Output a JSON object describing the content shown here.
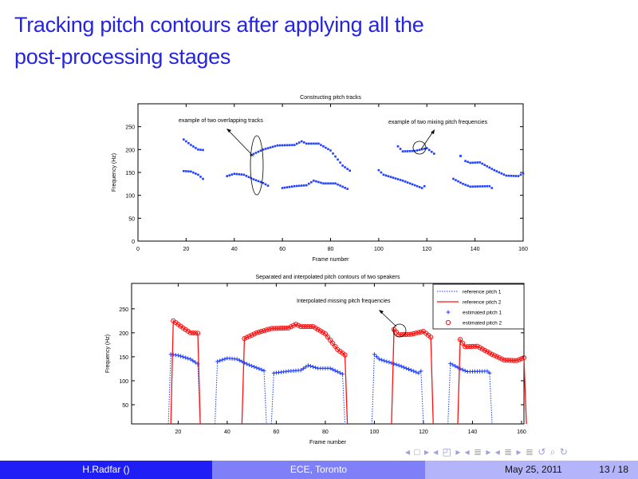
{
  "slide": {
    "title_line1": "Tracking pitch contours after applying all the",
    "title_line2": "post-processing stages"
  },
  "footer": {
    "author": "H.Radfar ()",
    "institution": "ECE, Toronto",
    "date": "May 25, 2011",
    "page": "13 / 18"
  },
  "nav_symbols": "◂ □ ▸ ◂ ◰ ▸ ◂ ≣ ▸ ◂ ≣ ▸   ≣   ↺ ⌕ ↻",
  "colors": {
    "blue": "#1f3fff",
    "red": "#ff1010",
    "title": "#2525e0"
  },
  "chart_data": [
    {
      "type": "scatter",
      "title": "Constructing pitch tracks",
      "xlabel": "Frame number",
      "ylabel": "Frequency (Hz)",
      "xlim": [
        0,
        160
      ],
      "ylim": [
        0,
        300
      ],
      "xticks": [
        0,
        20,
        40,
        60,
        80,
        100,
        120,
        140,
        160
      ],
      "yticks": [
        0,
        50,
        100,
        150,
        200,
        250
      ],
      "annotations": [
        "example of two overlapping tracks",
        "example of two mixing pitch frequencies"
      ],
      "tracks": [
        [
          [
            19,
            222
          ],
          [
            22,
            210
          ],
          [
            25,
            200
          ],
          [
            27,
            199
          ]
        ],
        [
          [
            19,
            153
          ],
          [
            22,
            152
          ],
          [
            25,
            145
          ],
          [
            27,
            136
          ]
        ],
        [
          [
            37,
            142
          ],
          [
            40,
            147
          ],
          [
            44,
            145
          ],
          [
            48,
            135
          ],
          [
            52,
            127
          ],
          [
            54,
            121
          ]
        ],
        [
          [
            47,
            188
          ],
          [
            52,
            200
          ],
          [
            58,
            209
          ],
          [
            65,
            210
          ],
          [
            68,
            218
          ],
          [
            70,
            213
          ],
          [
            75,
            213
          ],
          [
            80,
            198
          ],
          [
            85,
            165
          ],
          [
            88,
            154
          ]
        ],
        [
          [
            60,
            116
          ],
          [
            65,
            120
          ],
          [
            70,
            122
          ],
          [
            73,
            132
          ],
          [
            77,
            126
          ],
          [
            82,
            126
          ],
          [
            87,
            114
          ]
        ],
        [
          [
            108,
            207
          ],
          [
            110,
            196
          ],
          [
            115,
            197
          ],
          [
            120,
            203
          ],
          [
            123,
            191
          ]
        ],
        [
          [
            100,
            155
          ],
          [
            102,
            145
          ],
          [
            110,
            132
          ],
          [
            118,
            116
          ],
          [
            119,
            120
          ]
        ],
        [
          [
            134,
            186
          ],
          [
            134,
            186
          ]
        ],
        [
          [
            136,
            175
          ],
          [
            138,
            171
          ],
          [
            142,
            172
          ],
          [
            148,
            155
          ],
          [
            153,
            143
          ],
          [
            158,
            142
          ],
          [
            160,
            148
          ]
        ],
        [
          [
            131,
            136
          ],
          [
            135,
            125
          ],
          [
            138,
            119
          ],
          [
            146,
            120
          ],
          [
            147,
            116
          ]
        ]
      ]
    },
    {
      "type": "line",
      "title": "Separated and interpolated pitch contours of two speakers",
      "xlabel": "Frame number",
      "ylabel": "Frequency (Hz)",
      "xlim": [
        1,
        161
      ],
      "ylim": [
        10,
        303
      ],
      "xticks": [
        20,
        40,
        60,
        80,
        100,
        120,
        140,
        160
      ],
      "yticks": [
        50,
        100,
        150,
        200,
        250
      ],
      "annotation": "Interpolated missing pitch frequencies",
      "legend": {
        "position": "top-right",
        "entries": [
          "reference pitch 1",
          "reference pitch 2",
          "estimated pitch 1",
          "estimated pitch 2"
        ]
      },
      "series": [
        {
          "name": "estimated pitch 1",
          "tracks": [
            [
              [
                17,
                155
              ],
              [
                20,
                153
              ],
              [
                25,
                145
              ],
              [
                28,
                135
              ]
            ],
            [
              [
                36,
                140
              ],
              [
                40,
                147
              ],
              [
                44,
                145
              ],
              [
                48,
                135
              ],
              [
                52,
                127
              ],
              [
                55,
                121
              ]
            ],
            [
              [
                59,
                116
              ],
              [
                65,
                120
              ],
              [
                70,
                122
              ],
              [
                73,
                132
              ],
              [
                77,
                126
              ],
              [
                82,
                126
              ],
              [
                87,
                114
              ]
            ],
            [
              [
                100,
                155
              ],
              [
                102,
                145
              ],
              [
                110,
                132
              ],
              [
                118,
                116
              ],
              [
                119,
                120
              ]
            ],
            [
              [
                131,
                136
              ],
              [
                135,
                125
              ],
              [
                138,
                119
              ],
              [
                146,
                120
              ],
              [
                147,
                116
              ]
            ]
          ]
        },
        {
          "name": "estimated pitch 2",
          "tracks": [
            [
              [
                18,
                225
              ],
              [
                22,
                210
              ],
              [
                25,
                200
              ],
              [
                28,
                199
              ]
            ],
            [
              [
                47,
                188
              ],
              [
                52,
                200
              ],
              [
                58,
                209
              ],
              [
                65,
                210
              ],
              [
                68,
                218
              ],
              [
                70,
                213
              ],
              [
                75,
                213
              ],
              [
                80,
                198
              ],
              [
                85,
                165
              ],
              [
                88,
                154
              ]
            ],
            [
              [
                108,
                207
              ],
              [
                110,
                196
              ],
              [
                115,
                197
              ],
              [
                120,
                203
              ],
              [
                123,
                191
              ]
            ],
            [
              [
                135,
                186
              ],
              [
                137,
                171
              ],
              [
                142,
                172
              ],
              [
                148,
                155
              ],
              [
                153,
                143
              ],
              [
                158,
                142
              ],
              [
                161,
                148
              ]
            ]
          ]
        }
      ]
    }
  ]
}
